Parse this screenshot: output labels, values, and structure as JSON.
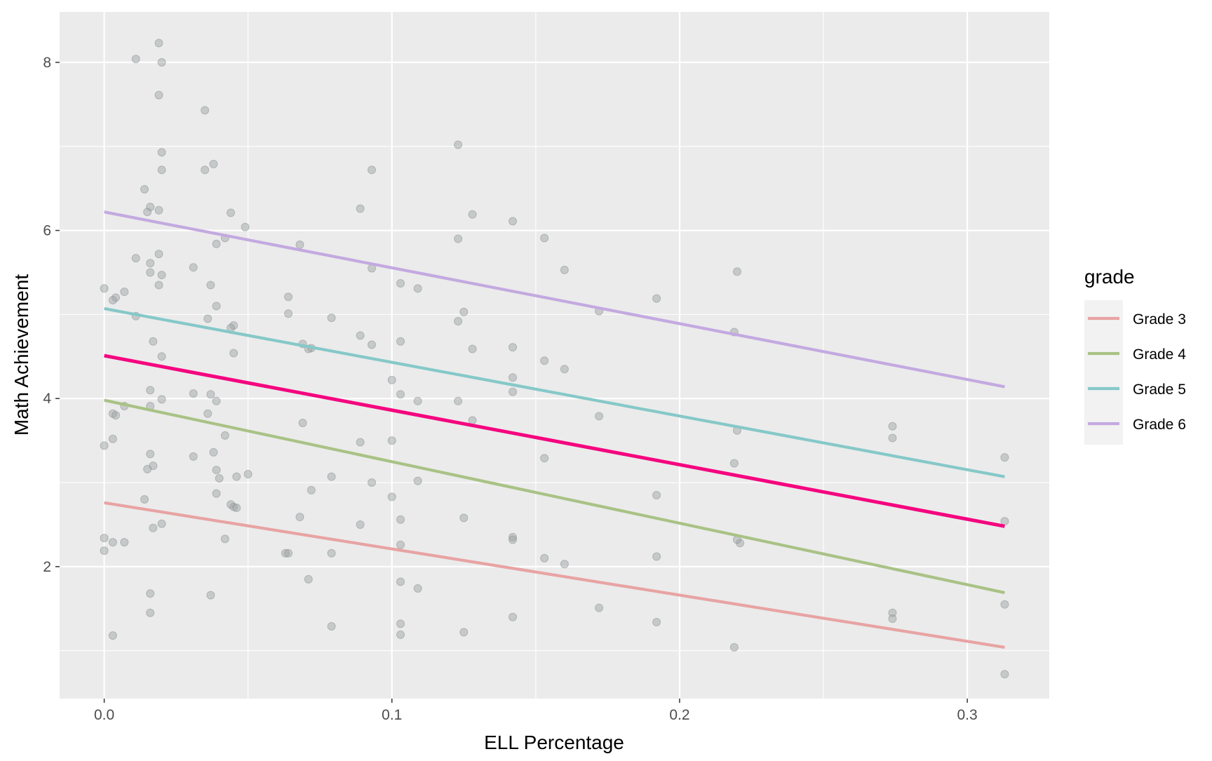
{
  "chart_data": {
    "type": "scatter",
    "title": "",
    "xlabel": "ELL Percentage",
    "ylabel": "Math Achievement",
    "xlim": [
      -0.0155,
      0.3285
    ],
    "ylim": [
      0.43,
      8.6
    ],
    "x_ticks": [
      0.0,
      0.1,
      0.2,
      0.3
    ],
    "x_tick_labels": [
      "0.0",
      "0.1",
      "0.2",
      "0.3"
    ],
    "y_ticks": [
      2,
      4,
      6,
      8
    ],
    "y_tick_labels": [
      "2",
      "4",
      "6",
      "8"
    ],
    "grid": true,
    "legend": {
      "title": "grade",
      "position": "right",
      "entries": [
        {
          "label": "Grade 3",
          "color": "#e8a3a3"
        },
        {
          "label": "Grade 4",
          "color": "#a9c286"
        },
        {
          "label": "Grade 5",
          "color": "#86c8c8"
        },
        {
          "label": "Grade 6",
          "color": "#c3a9e0"
        }
      ]
    },
    "lines": [
      {
        "name": "Grade 3",
        "color": "#e8a3a3",
        "x": [
          0.0,
          0.313
        ],
        "y": [
          2.76,
          1.04
        ]
      },
      {
        "name": "Grade 4",
        "color": "#a9c286",
        "x": [
          0.0,
          0.313
        ],
        "y": [
          3.98,
          1.69
        ]
      },
      {
        "name": "Grade 5",
        "color": "#86c8c8",
        "x": [
          0.0,
          0.313
        ],
        "y": [
          5.07,
          3.07
        ]
      },
      {
        "name": "Grade 6",
        "color": "#c3a9e0",
        "x": [
          0.0,
          0.313
        ],
        "y": [
          6.22,
          4.14
        ]
      },
      {
        "name": "",
        "color": "#f5057f",
        "x": [
          0.0,
          0.313
        ],
        "y": [
          4.51,
          2.48
        ]
      }
    ],
    "points": {
      "color": "#9aa0a0",
      "x": [
        0.011,
        0.019,
        0.02,
        0.019,
        0.035,
        0.123,
        0.02,
        0.093,
        0.035,
        0.038,
        0.02,
        0.014,
        0.016,
        0.015,
        0.019,
        0.044,
        0.089,
        0.128,
        0.142,
        0.153,
        0.123,
        0.049,
        0.042,
        0.039,
        0.068,
        0.011,
        0.019,
        0.016,
        0.031,
        0.093,
        0.16,
        0.22,
        0.037,
        0.016,
        0.02,
        0.0,
        0.019,
        0.103,
        0.064,
        0.004,
        0.007,
        0.039,
        0.109,
        0.192,
        0.003,
        0.125,
        0.064,
        0.079,
        0.036,
        0.123,
        0.172,
        0.219,
        0.011,
        0.045,
        0.044,
        0.017,
        0.089,
        0.069,
        0.072,
        0.093,
        0.142,
        0.045,
        0.071,
        0.103,
        0.128,
        0.016,
        0.02,
        0.02,
        0.153,
        0.16,
        0.142,
        0.1,
        0.142,
        0.123,
        0.103,
        0.016,
        0.031,
        0.037,
        0.039,
        0.003,
        0.004,
        0.109,
        0.007,
        0.172,
        0.036,
        0.069,
        0.128,
        0.22,
        0.274,
        0.0,
        0.003,
        0.042,
        0.038,
        0.089,
        0.1,
        0.016,
        0.274,
        0.017,
        0.015,
        0.153,
        0.039,
        0.031,
        0.313,
        0.219,
        0.05,
        0.04,
        0.046,
        0.079,
        0.072,
        0.109,
        0.093,
        0.192,
        0.014,
        0.039,
        0.1,
        0.044,
        0.045,
        0.068,
        0.046,
        0.02,
        0.125,
        0.017,
        0.103,
        0.142,
        0.063,
        0.221,
        0.089,
        0.313,
        0.042,
        0.0,
        0.22,
        0.003,
        0.007,
        0.142,
        0.0,
        0.192,
        0.103,
        0.153,
        0.16,
        0.079,
        0.064,
        0.071,
        0.109,
        0.103,
        0.016,
        0.037,
        0.274,
        0.016,
        0.172,
        0.313,
        0.274,
        0.003,
        0.142,
        0.079,
        0.103,
        0.192,
        0.125,
        0.103,
        0.219,
        0.313
      ],
      "y": [
        8.04,
        8.23,
        8.0,
        7.61,
        7.43,
        7.02,
        6.93,
        6.72,
        6.72,
        6.79,
        6.72,
        6.49,
        6.28,
        6.22,
        6.24,
        6.21,
        6.26,
        6.19,
        6.11,
        5.91,
        5.9,
        6.04,
        5.91,
        5.84,
        5.83,
        5.67,
        5.72,
        5.61,
        5.56,
        5.55,
        5.53,
        5.51,
        5.35,
        5.5,
        5.47,
        5.31,
        5.35,
        5.37,
        5.21,
        5.2,
        5.27,
        5.1,
        5.31,
        5.19,
        5.17,
        5.03,
        5.01,
        4.96,
        4.95,
        4.92,
        5.04,
        4.79,
        4.98,
        4.87,
        4.84,
        4.68,
        4.75,
        4.65,
        4.6,
        4.64,
        4.61,
        4.54,
        4.59,
        4.68,
        4.59,
        4.1,
        4.5,
        3.99,
        4.45,
        4.35,
        4.25,
        4.22,
        4.08,
        3.97,
        4.05,
        3.91,
        4.06,
        4.05,
        3.97,
        3.82,
        3.8,
        3.97,
        3.91,
        3.79,
        3.82,
        3.71,
        3.74,
        3.62,
        3.67,
        3.44,
        3.52,
        3.56,
        3.36,
        3.48,
        3.5,
        3.34,
        3.53,
        3.2,
        3.16,
        3.29,
        3.15,
        3.31,
        3.3,
        3.23,
        3.1,
        3.05,
        3.07,
        3.07,
        2.91,
        3.02,
        3.0,
        2.85,
        2.8,
        2.87,
        2.83,
        2.74,
        2.71,
        2.59,
        2.7,
        2.51,
        2.58,
        2.46,
        2.56,
        2.35,
        2.16,
        2.28,
        2.5,
        2.54,
        2.33,
        2.34,
        2.32,
        2.29,
        2.29,
        2.32,
        2.19,
        2.12,
        2.26,
        2.1,
        2.03,
        2.16,
        2.16,
        1.85,
        1.74,
        1.82,
        1.68,
        1.66,
        1.45,
        1.45,
        1.51,
        1.55,
        1.38,
        1.18,
        1.4,
        1.29,
        1.32,
        1.34,
        1.22,
        1.19,
        1.04,
        0.72
      ]
    }
  }
}
